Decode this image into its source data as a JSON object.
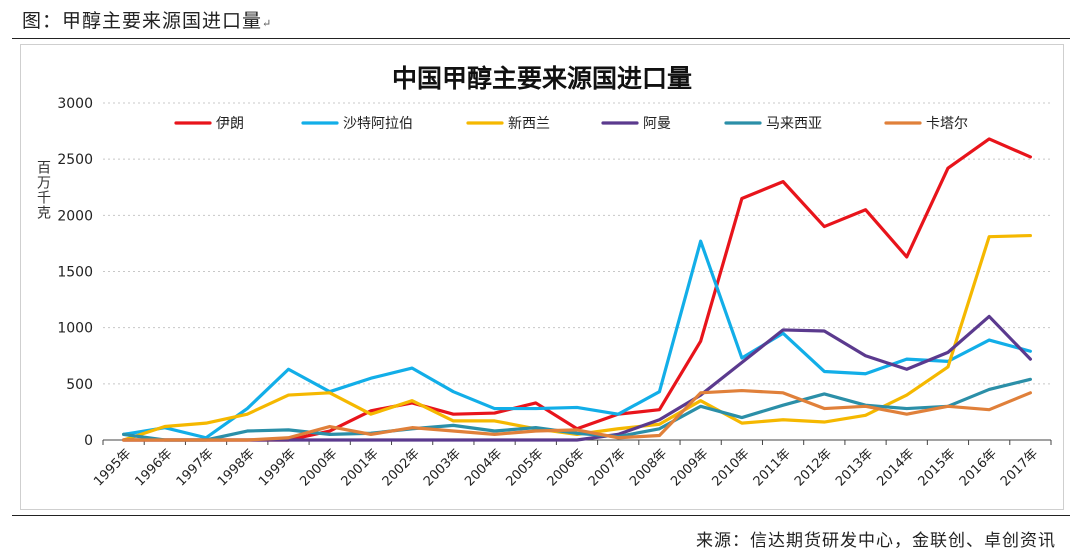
{
  "caption": "图：甲醇主要来源国进口量",
  "caption_mark": "↵",
  "source": "来源：信达期货研发中心，金联创、卓创资讯",
  "chart_data": {
    "type": "line",
    "title": "中国甲醇主要来源国进口量",
    "ylabel": "百万千克",
    "xlabel": "",
    "ylim": [
      0,
      3000
    ],
    "yticks": [
      0,
      500,
      1000,
      1500,
      2000,
      2500,
      3000
    ],
    "grid": true,
    "legend_position": "top",
    "categories": [
      "1995年",
      "1996年",
      "1997年",
      "1998年",
      "1999年",
      "2000年",
      "2001年",
      "2002年",
      "2003年",
      "2004年",
      "2005年",
      "2006年",
      "2007年",
      "2008年",
      "2009年",
      "2010年",
      "2011年",
      "2012年",
      "2013年",
      "2014年",
      "2015年",
      "2016年",
      "2017年"
    ],
    "series": [
      {
        "name": "伊朗",
        "color": "#e8141b",
        "values": [
          0,
          0,
          0,
          0,
          0,
          80,
          260,
          330,
          230,
          240,
          330,
          100,
          230,
          270,
          880,
          2150,
          2300,
          1900,
          2050,
          1630,
          2420,
          2680,
          2520
        ]
      },
      {
        "name": "沙特阿拉伯",
        "color": "#12aee8",
        "values": [
          50,
          110,
          20,
          280,
          630,
          430,
          550,
          640,
          430,
          280,
          280,
          290,
          230,
          430,
          1770,
          730,
          950,
          610,
          590,
          720,
          700,
          890,
          790
        ]
      },
      {
        "name": "新西兰",
        "color": "#f5b800",
        "values": [
          0,
          120,
          150,
          230,
          400,
          420,
          230,
          350,
          170,
          170,
          100,
          50,
          100,
          140,
          350,
          150,
          180,
          160,
          220,
          400,
          650,
          1810,
          1820
        ]
      },
      {
        "name": "阿曼",
        "color": "#5b3a8e",
        "values": [
          0,
          0,
          0,
          0,
          0,
          0,
          0,
          0,
          0,
          0,
          0,
          0,
          50,
          180,
          400,
          690,
          980,
          970,
          750,
          630,
          780,
          1100,
          720
        ]
      },
      {
        "name": "马来西亚",
        "color": "#2b8fa8",
        "values": [
          50,
          0,
          0,
          80,
          90,
          50,
          60,
          100,
          130,
          80,
          110,
          60,
          30,
          100,
          300,
          200,
          310,
          410,
          310,
          280,
          300,
          450,
          540
        ]
      },
      {
        "name": "卡塔尔",
        "color": "#e0803a",
        "values": [
          0,
          0,
          0,
          0,
          20,
          120,
          50,
          110,
          80,
          50,
          80,
          90,
          20,
          40,
          420,
          440,
          420,
          280,
          300,
          230,
          300,
          270,
          420
        ]
      }
    ]
  }
}
